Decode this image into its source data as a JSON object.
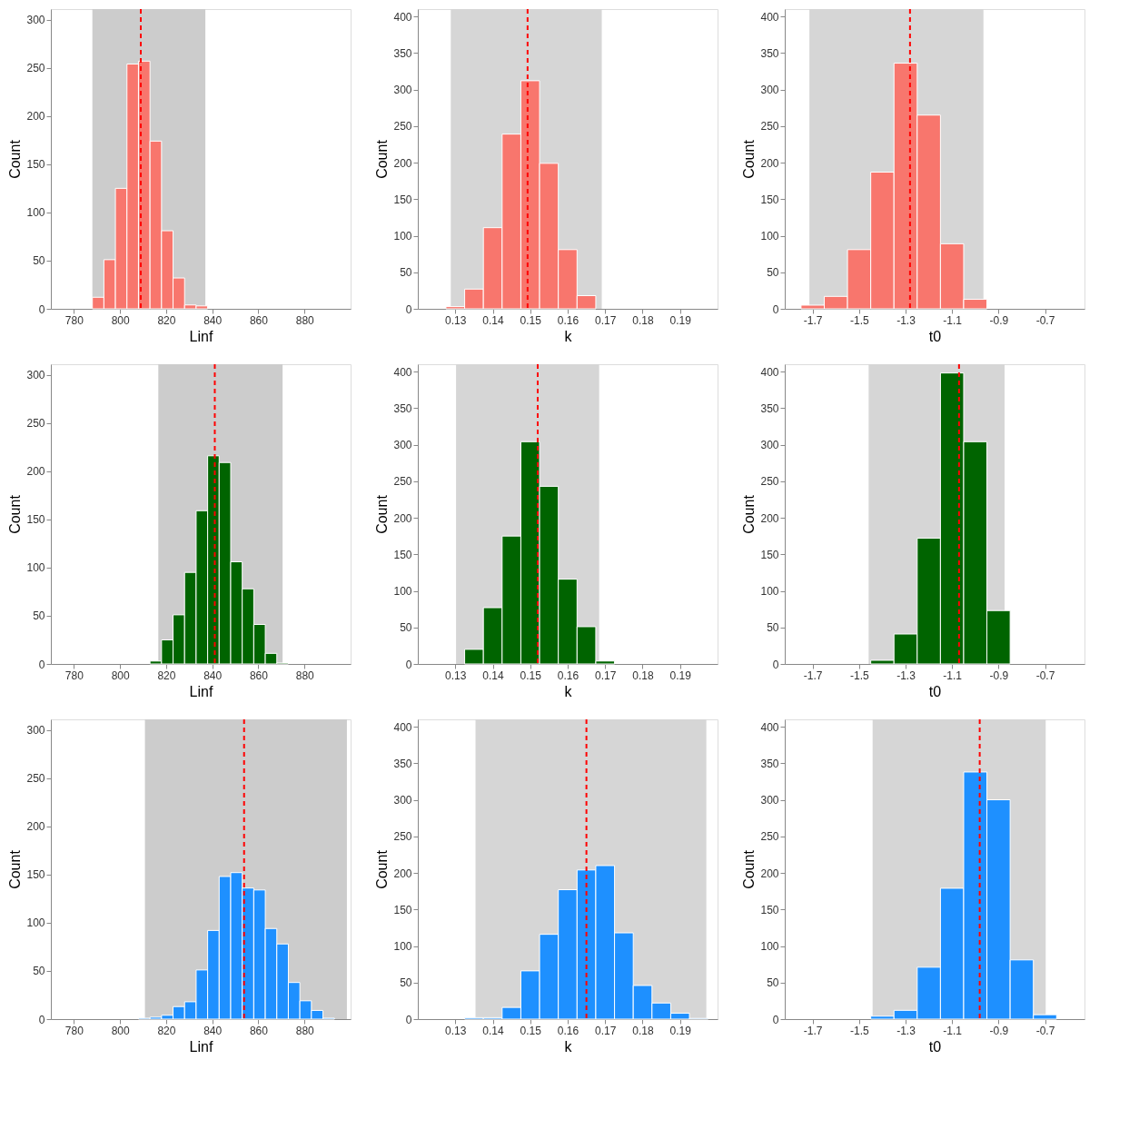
{
  "chart_data": [
    {
      "type": "histogram",
      "xlabel": "Linf",
      "ylabel": "Count",
      "bins": [
        788,
        793,
        798,
        803,
        808,
        813,
        818,
        823,
        828,
        833,
        838
      ],
      "series": [
        {
          "color": "#f8766d",
          "values": [
            12,
            51,
            125,
            254,
            257,
            174,
            81,
            32,
            4,
            3
          ]
        }
      ],
      "xlim": [
        770,
        900
      ],
      "xticks": [
        780,
        800,
        820,
        840,
        860,
        880
      ],
      "ylim": [
        0,
        311
      ],
      "yticks": [
        0,
        50,
        100,
        150,
        200,
        250,
        300
      ],
      "bands": [
        {
          "axis": "x",
          "from": 788,
          "to": 837,
          "color": "#cccccc"
        }
      ],
      "ref_lines": [
        {
          "axis": "x",
          "value": 809,
          "color": "#ff0000",
          "line_style": "dashed"
        }
      ]
    },
    {
      "type": "histogram",
      "xlabel": "k",
      "ylabel": "Count",
      "bins": [
        0.1275,
        0.1325,
        0.1375,
        0.1425,
        0.1475,
        0.1525,
        0.1575,
        0.1625,
        0.1675
      ],
      "series": [
        {
          "color": "#f8766d",
          "values": [
            3,
            27,
            111,
            239,
            312,
            199,
            81,
            18
          ]
        }
      ],
      "xlim": [
        0.12,
        0.2
      ],
      "xticks": [
        0.13,
        0.14,
        0.15,
        0.16,
        0.17,
        0.18,
        0.19
      ],
      "ylim": [
        0,
        410
      ],
      "yticks": [
        0,
        50,
        100,
        150,
        200,
        250,
        300,
        350,
        400
      ],
      "bands": [
        {
          "axis": "x",
          "from": 0.1288,
          "to": 0.1691,
          "color": "#d6d6d6"
        }
      ],
      "ref_lines": [
        {
          "axis": "x",
          "value": 0.1493,
          "color": "#ff0000",
          "line_style": "dashed"
        }
      ]
    },
    {
      "type": "histogram",
      "xlabel": "t0",
      "ylabel": "Count",
      "bins": [
        -1.75,
        -1.65,
        -1.55,
        -1.45,
        -1.35,
        -1.25,
        -1.15,
        -1.05,
        -0.95
      ],
      "series": [
        {
          "color": "#f8766d",
          "values": [
            5,
            17,
            81,
            187,
            336,
            265,
            89,
            13
          ]
        }
      ],
      "xlim": [
        -1.82,
        -0.53
      ],
      "xticks": [
        -1.7,
        -1.5,
        -1.3,
        -1.1,
        -0.9,
        -0.7
      ],
      "ylim": [
        0,
        410
      ],
      "yticks": [
        0,
        50,
        100,
        150,
        200,
        250,
        300,
        350,
        400
      ],
      "bands": [
        {
          "axis": "x",
          "from": -1.714,
          "to": -0.965,
          "color": "#d6d6d6"
        }
      ],
      "ref_lines": [
        {
          "axis": "x",
          "value": -1.281,
          "color": "#ff0000",
          "line_style": "dashed"
        }
      ]
    },
    {
      "type": "histogram",
      "xlabel": "Linf",
      "ylabel": "Count",
      "bins": [
        813,
        818,
        823,
        828,
        833,
        838,
        843,
        848,
        853,
        858,
        863,
        868,
        873
      ],
      "series": [
        {
          "color": "#006400",
          "values": [
            3,
            25,
            51,
            95,
            159,
            216,
            209,
            106,
            78,
            41,
            11,
            1
          ]
        }
      ],
      "xlim": [
        770,
        900
      ],
      "xticks": [
        780,
        800,
        820,
        840,
        860,
        880
      ],
      "ylim": [
        0,
        311
      ],
      "yticks": [
        0,
        50,
        100,
        150,
        200,
        250,
        300
      ],
      "bands": [
        {
          "axis": "x",
          "from": 816.6,
          "to": 870.5,
          "color": "#cccccc"
        }
      ],
      "ref_lines": [
        {
          "axis": "x",
          "value": 841.1,
          "color": "#ff0000",
          "line_style": "dashed"
        }
      ]
    },
    {
      "type": "histogram",
      "xlabel": "k",
      "ylabel": "Count",
      "bins": [
        0.1325,
        0.1375,
        0.1425,
        0.1475,
        0.1525,
        0.1575,
        0.1625,
        0.1675,
        0.1725
      ],
      "series": [
        {
          "color": "#006400",
          "values": [
            20,
            77,
            175,
            304,
            243,
            116,
            51,
            4
          ]
        }
      ],
      "xlim": [
        0.12,
        0.2
      ],
      "xticks": [
        0.13,
        0.14,
        0.15,
        0.16,
        0.17,
        0.18,
        0.19
      ],
      "ylim": [
        0,
        410
      ],
      "yticks": [
        0,
        50,
        100,
        150,
        200,
        250,
        300,
        350,
        400
      ],
      "bands": [
        {
          "axis": "x",
          "from": 0.1302,
          "to": 0.1684,
          "color": "#d6d6d6"
        }
      ],
      "ref_lines": [
        {
          "axis": "x",
          "value": 0.152,
          "color": "#ff0000",
          "line_style": "dashed"
        }
      ]
    },
    {
      "type": "histogram",
      "xlabel": "t0",
      "ylabel": "Count",
      "bins": [
        -1.45,
        -1.35,
        -1.25,
        -1.15,
        -1.05,
        -0.95,
        -0.85
      ],
      "series": [
        {
          "color": "#006400",
          "values": [
            5,
            41,
            172,
            398,
            304,
            73
          ]
        }
      ],
      "xlim": [
        -1.82,
        -0.53
      ],
      "xticks": [
        -1.7,
        -1.5,
        -1.3,
        -1.1,
        -0.9,
        -0.7
      ],
      "ylim": [
        0,
        410
      ],
      "yticks": [
        0,
        50,
        100,
        150,
        200,
        250,
        300,
        350,
        400
      ],
      "bands": [
        {
          "axis": "x",
          "from": -1.459,
          "to": -0.874,
          "color": "#d6d6d6"
        }
      ],
      "ref_lines": [
        {
          "axis": "x",
          "value": -1.07,
          "color": "#ff0000",
          "line_style": "dashed"
        }
      ]
    },
    {
      "type": "histogram",
      "xlabel": "Linf",
      "ylabel": "Count",
      "bins": [
        808,
        813,
        818,
        823,
        828,
        833,
        838,
        843,
        848,
        853,
        858,
        863,
        868,
        873,
        878,
        883,
        888,
        893
      ],
      "series": [
        {
          "color": "#1e90ff",
          "values": [
            1,
            2,
            4,
            13,
            18,
            51,
            92,
            148,
            152,
            136,
            134,
            94,
            78,
            38,
            19,
            9,
            1
          ]
        }
      ],
      "xlim": [
        770,
        900
      ],
      "xticks": [
        780,
        800,
        820,
        840,
        860,
        880
      ],
      "ylim": [
        0,
        311
      ],
      "yticks": [
        0,
        50,
        100,
        150,
        200,
        250,
        300
      ],
      "bands": [
        {
          "axis": "x",
          "from": 810.8,
          "to": 898.4,
          "color": "#cccccc"
        }
      ],
      "ref_lines": [
        {
          "axis": "x",
          "value": 853.8,
          "color": "#ff0000",
          "line_style": "dashed"
        }
      ]
    },
    {
      "type": "histogram",
      "xlabel": "k",
      "ylabel": "Count",
      "bins": [
        0.1325,
        0.1375,
        0.1425,
        0.1475,
        0.1525,
        0.1575,
        0.1625,
        0.1675,
        0.1725,
        0.1775,
        0.1825,
        0.1875,
        0.1925,
        0.1975
      ],
      "series": [
        {
          "color": "#1e90ff",
          "values": [
            2,
            2,
            16,
            66,
            116,
            177,
            204,
            210,
            118,
            46,
            22,
            8,
            1
          ]
        }
      ],
      "xlim": [
        0.12,
        0.2
      ],
      "xticks": [
        0.13,
        0.14,
        0.15,
        0.16,
        0.17,
        0.18,
        0.19
      ],
      "ylim": [
        0,
        410
      ],
      "yticks": [
        0,
        50,
        100,
        150,
        200,
        250,
        300,
        350,
        400
      ],
      "bands": [
        {
          "axis": "x",
          "from": 0.1354,
          "to": 0.197,
          "color": "#d6d6d6"
        }
      ],
      "ref_lines": [
        {
          "axis": "x",
          "value": 0.165,
          "color": "#ff0000",
          "line_style": "dashed"
        }
      ]
    },
    {
      "type": "histogram",
      "xlabel": "t0",
      "ylabel": "Count",
      "bins": [
        -1.45,
        -1.35,
        -1.25,
        -1.15,
        -1.05,
        -0.95,
        -0.85,
        -0.75,
        -0.65
      ],
      "series": [
        {
          "color": "#1e90ff",
          "values": [
            4,
            12,
            71,
            179,
            338,
            300,
            81,
            6
          ]
        }
      ],
      "xlim": [
        -1.82,
        -0.53
      ],
      "xticks": [
        -1.7,
        -1.5,
        -1.3,
        -1.1,
        -0.9,
        -0.7
      ],
      "ylim": [
        0,
        410
      ],
      "yticks": [
        0,
        50,
        100,
        150,
        200,
        250,
        300,
        350,
        400
      ],
      "bands": [
        {
          "axis": "x",
          "from": -1.442,
          "to": -0.697,
          "color": "#d6d6d6"
        }
      ],
      "ref_lines": [
        {
          "axis": "x",
          "value": -0.981,
          "color": "#ff0000",
          "line_style": "dashed"
        }
      ]
    }
  ]
}
